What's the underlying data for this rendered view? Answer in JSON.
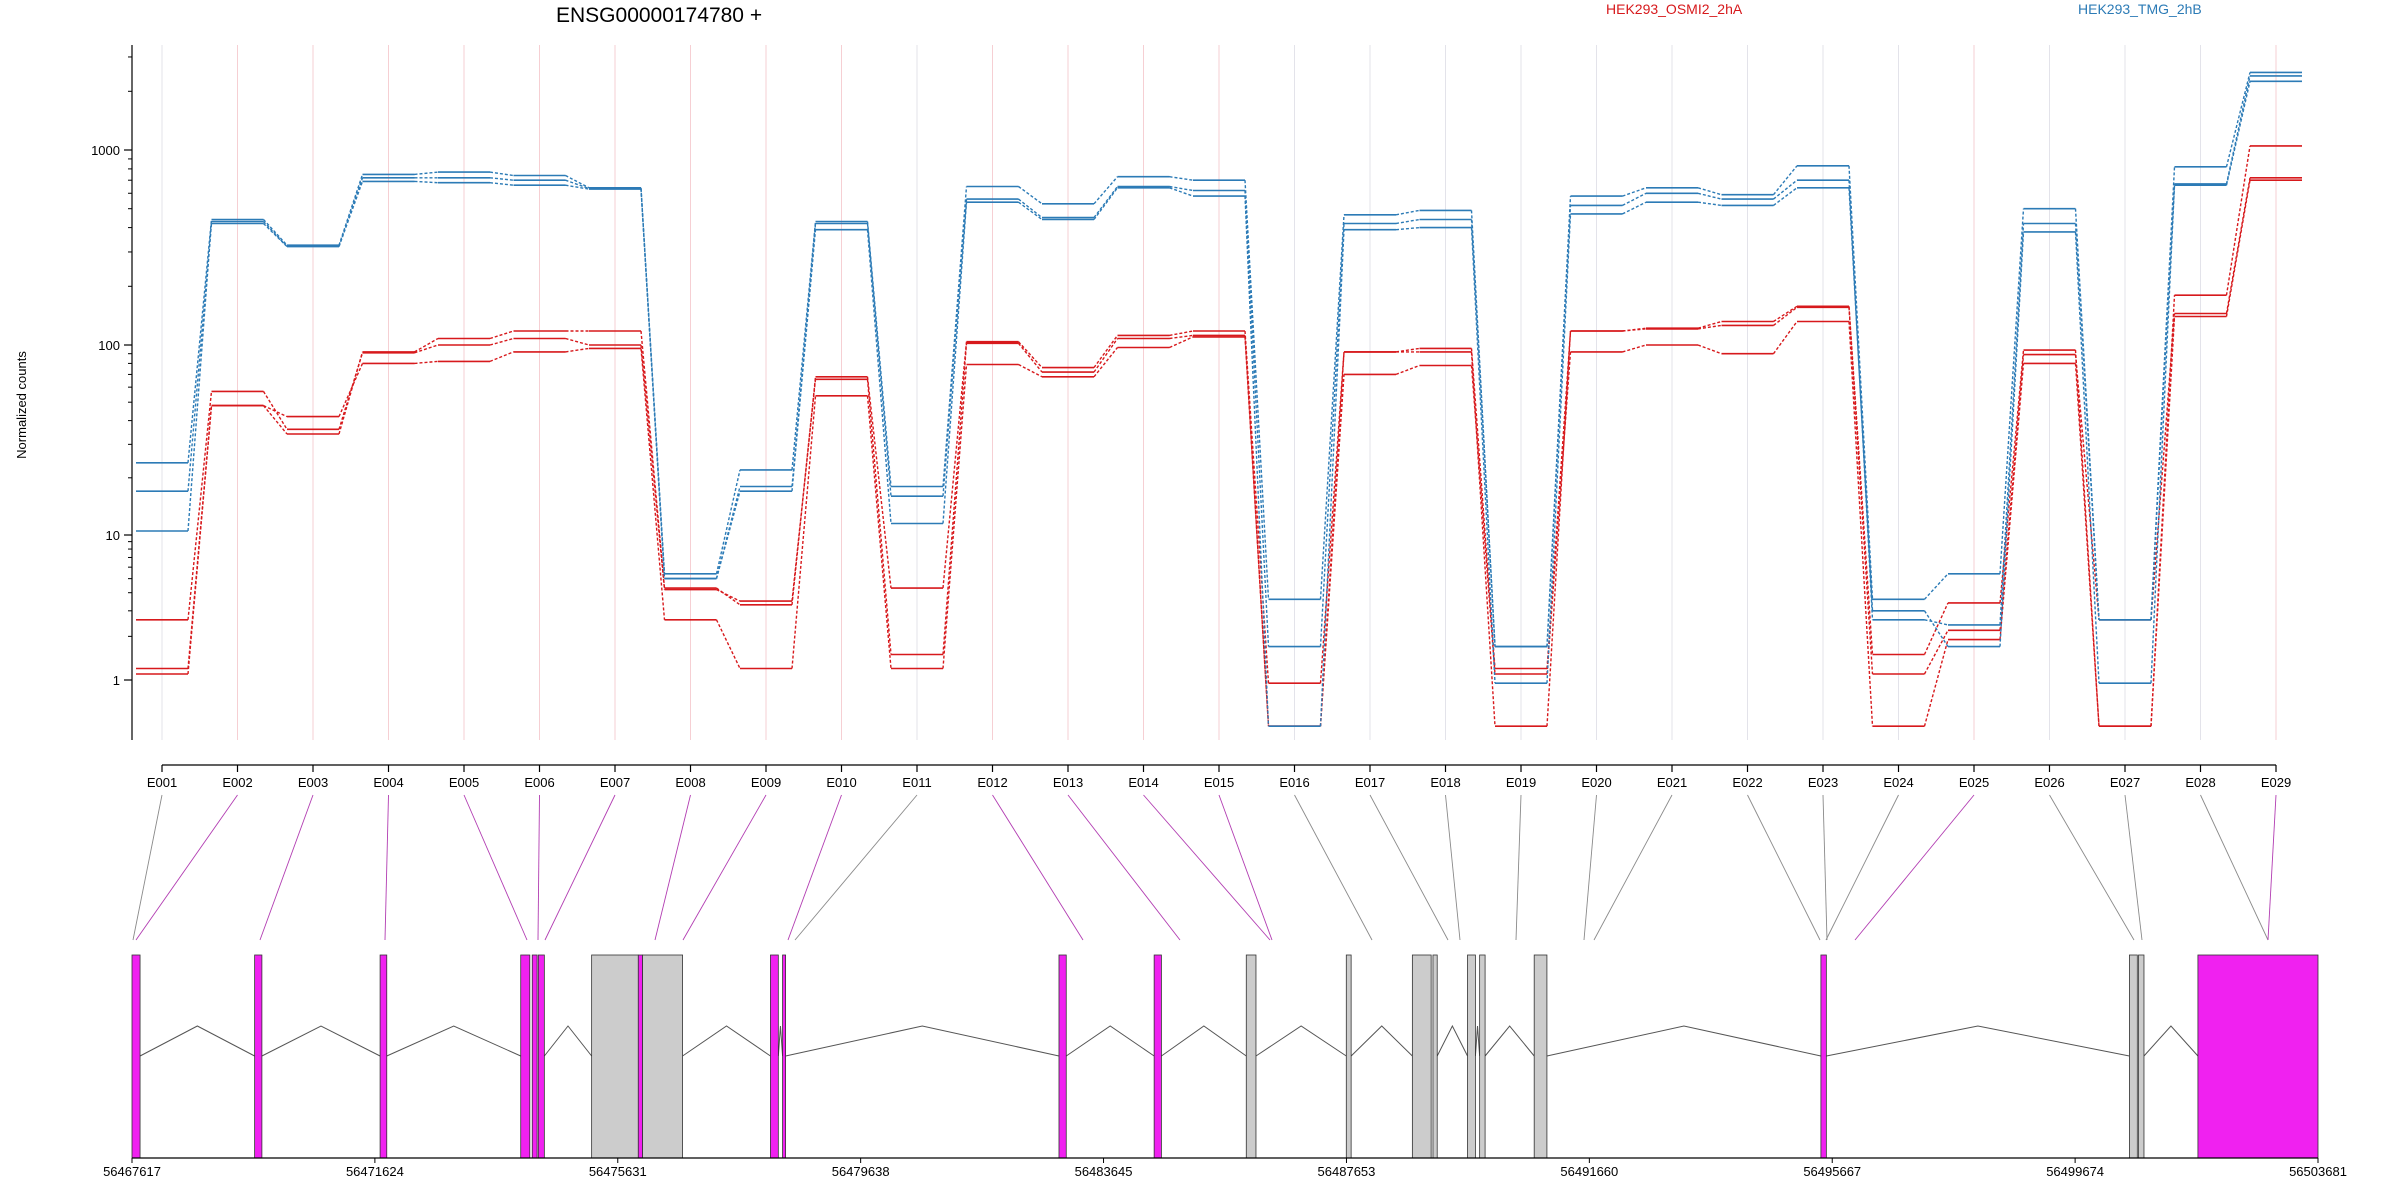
{
  "chart_data": {
    "type": "line",
    "title": "ENSG00000174780 +",
    "ylabel": "Normalized counts",
    "yscale": "log",
    "ylim": [
      0.5,
      3500
    ],
    "yticks": [
      1,
      10,
      100,
      1000
    ],
    "grid": "vertical per exon",
    "legend_position": "top",
    "categories": [
      "E001",
      "E002",
      "E003",
      "E004",
      "E005",
      "E006",
      "E007",
      "E008",
      "E009",
      "E010",
      "E011",
      "E012",
      "E013",
      "E014",
      "E015",
      "E016",
      "E017",
      "E018",
      "E019",
      "E020",
      "E021",
      "E022",
      "E023",
      "E024",
      "E025",
      "E026",
      "E027",
      "E028",
      "E029"
    ],
    "groups": [
      {
        "name": "HEK293_OSMI2_2hA",
        "color": "#d7191c"
      },
      {
        "name": "HEK293_TMG_2hB",
        "color": "#2c7bb6"
      }
    ],
    "series": [
      {
        "group": "HEK293_OSMI2_2hA",
        "values": [
          1.2,
          48,
          34,
          92,
          108,
          118,
          118,
          4.3,
          3.3,
          68,
          4.3,
          104,
          76,
          112,
          118,
          0.95,
          92,
          96,
          1.2,
          118,
          122,
          132,
          158,
          1.5,
          3.4,
          94,
          0.48,
          180,
          1050
        ]
      },
      {
        "group": "HEK293_OSMI2_2hA",
        "values": [
          2.6,
          57,
          36,
          91,
          100,
          108,
          100,
          4.2,
          3.5,
          66,
          1.5,
          102,
          72,
          108,
          112,
          0.48,
          92,
          92,
          0.48,
          118,
          121,
          126,
          156,
          1.1,
          2.2,
          89,
          2.6,
          145,
          720
        ]
      },
      {
        "group": "HEK293_OSMI2_2hA",
        "values": [
          1.1,
          48,
          42,
          80,
          82,
          92,
          96,
          2.6,
          1.2,
          54,
          1.2,
          79,
          68,
          97,
          110,
          0.48,
          70,
          78,
          1.1,
          92,
          100,
          90,
          132,
          0.48,
          1.9,
          80,
          0.48,
          140,
          700
        ]
      },
      {
        "group": "HEK293_TMG_2hB",
        "values": [
          24,
          440,
          325,
          750,
          770,
          740,
          640,
          5.4,
          22,
          430,
          18,
          650,
          530,
          730,
          700,
          3.6,
          465,
          490,
          1.7,
          580,
          640,
          590,
          830,
          3.6,
          5.4,
          500,
          2.6,
          820,
          2500
        ]
      },
      {
        "group": "HEK293_TMG_2hB",
        "values": [
          17,
          420,
          320,
          720,
          720,
          700,
          635,
          5.0,
          18,
          420,
          16,
          560,
          450,
          650,
          620,
          1.7,
          420,
          440,
          1.7,
          520,
          600,
          560,
          700,
          2.6,
          2.4,
          420,
          2.6,
          670,
          2400
        ]
      },
      {
        "group": "HEK293_TMG_2hB",
        "values": [
          10.5,
          430,
          320,
          690,
          680,
          660,
          630,
          5.0,
          17,
          390,
          11.5,
          540,
          440,
          640,
          580,
          0.48,
          390,
          400,
          0.95,
          470,
          540,
          520,
          640,
          3.0,
          1.7,
          380,
          0.95,
          660,
          2250
        ]
      }
    ],
    "exon_highlight": [
      false,
      true,
      true,
      true,
      true,
      true,
      true,
      true,
      true,
      true,
      false,
      true,
      true,
      true,
      true,
      false,
      false,
      false,
      false,
      false,
      false,
      false,
      false,
      false,
      true,
      false,
      false,
      false,
      true
    ],
    "genomic_axis": {
      "range": [
        56467617,
        56503681
      ],
      "ticks": [
        56467617,
        56471624,
        56475631,
        56479638,
        56483645,
        56487653,
        56491660,
        56495667,
        56499674,
        56503681
      ]
    },
    "gene_model": [
      {
        "start": 56467617,
        "end": 56467750,
        "highlighted": true
      },
      {
        "start": 56469640,
        "end": 56469760,
        "highlighted": true
      },
      {
        "start": 56471710,
        "end": 56471820,
        "highlighted": true
      },
      {
        "start": 56474030,
        "end": 56474180,
        "highlighted": true
      },
      {
        "start": 56474220,
        "end": 56474300,
        "highlighted": true
      },
      {
        "start": 56474320,
        "end": 56474420,
        "highlighted": true
      },
      {
        "start": 56475200,
        "end": 56475970,
        "highlighted": false
      },
      {
        "start": 56475970,
        "end": 56476040,
        "highlighted": true
      },
      {
        "start": 56476040,
        "end": 56476700,
        "highlighted": false
      },
      {
        "start": 56478150,
        "end": 56478280,
        "highlighted": true
      },
      {
        "start": 56478350,
        "end": 56478400,
        "highlighted": true
      },
      {
        "start": 56482910,
        "end": 56483030,
        "highlighted": true
      },
      {
        "start": 56484480,
        "end": 56484600,
        "highlighted": true
      },
      {
        "start": 56486000,
        "end": 56486160,
        "highlighted": false
      },
      {
        "start": 56487650,
        "end": 56487730,
        "highlighted": false
      },
      {
        "start": 56488740,
        "end": 56489050,
        "highlighted": false
      },
      {
        "start": 56489080,
        "end": 56489150,
        "highlighted": false
      },
      {
        "start": 56489650,
        "end": 56489780,
        "highlighted": false
      },
      {
        "start": 56489850,
        "end": 56489940,
        "highlighted": false
      },
      {
        "start": 56490750,
        "end": 56490960,
        "highlighted": false
      },
      {
        "start": 56495480,
        "end": 56495570,
        "highlighted": true
      },
      {
        "start": 56500570,
        "end": 56500700,
        "highlighted": false
      },
      {
        "start": 56500720,
        "end": 56500810,
        "highlighted": false
      },
      {
        "start": 56501700,
        "end": 56503681,
        "highlighted": true
      }
    ],
    "colors": {
      "highlight": "#f021f0",
      "plain": "#cccccc",
      "osmi": "#d7191c",
      "tmg": "#2c7bb6"
    }
  }
}
